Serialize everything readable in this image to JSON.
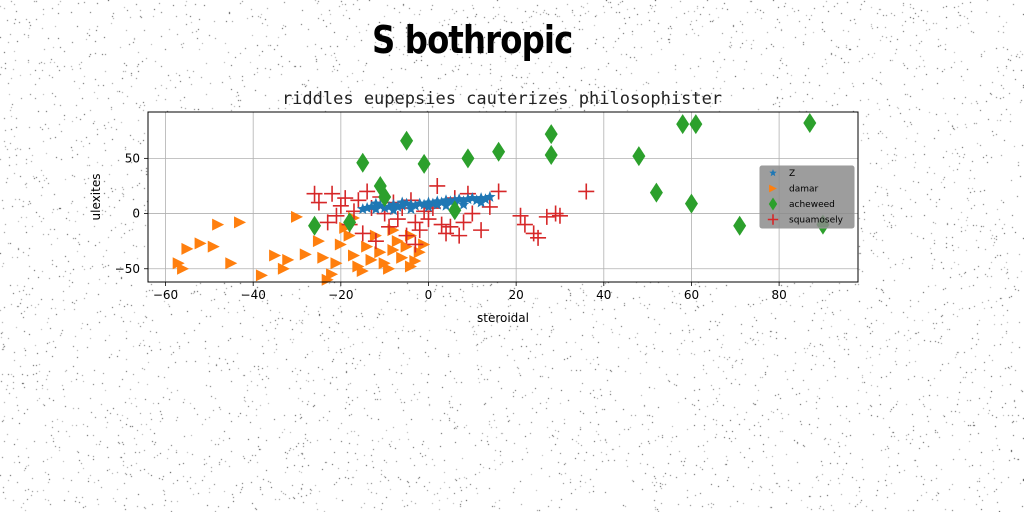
{
  "figure": {
    "suptitle": "S bothropic"
  },
  "chart_data": {
    "type": "scatter",
    "title": "riddles eupepsies cauterizes philosophister",
    "xlabel": "steroidal",
    "ylabel": "ulexites",
    "xlim": [
      -64,
      98
    ],
    "ylim": [
      -62,
      92
    ],
    "xticks": [
      -60,
      -40,
      -20,
      0,
      20,
      40,
      60,
      80
    ],
    "yticks": [
      -50,
      0,
      50
    ],
    "grid": true,
    "legend_placement": "right",
    "series": [
      {
        "name": "Z",
        "marker": "star",
        "color": "#1f77b4",
        "points": [
          [
            -15,
            4
          ],
          [
            -14,
            5
          ],
          [
            -13,
            6
          ],
          [
            -12,
            4
          ],
          [
            -11,
            7
          ],
          [
            -10,
            5
          ],
          [
            -9,
            6
          ],
          [
            -8,
            8
          ],
          [
            -7,
            6
          ],
          [
            -6,
            7
          ],
          [
            -5,
            9
          ],
          [
            -4,
            8
          ],
          [
            -3,
            7
          ],
          [
            -2,
            9
          ],
          [
            -1,
            8
          ],
          [
            0,
            10
          ],
          [
            1,
            9
          ],
          [
            2,
            11
          ],
          [
            3,
            10
          ],
          [
            4,
            12
          ],
          [
            5,
            11
          ],
          [
            6,
            12
          ],
          [
            7,
            13
          ],
          [
            8,
            11
          ],
          [
            9,
            13
          ],
          [
            10,
            14
          ],
          [
            11,
            12
          ],
          [
            12,
            14
          ],
          [
            13,
            13
          ],
          [
            14,
            15
          ],
          [
            -12,
            9
          ],
          [
            -8,
            3
          ],
          [
            -4,
            4
          ],
          [
            0,
            6
          ],
          [
            4,
            7
          ],
          [
            8,
            8
          ],
          [
            12,
            10
          ],
          [
            -6,
            10
          ],
          [
            2,
            8
          ],
          [
            6,
            9
          ]
        ]
      },
      {
        "name": "damar",
        "marker": "triangle-right",
        "color": "#ff7f0e",
        "points": [
          [
            -57,
            -45
          ],
          [
            -56,
            -50
          ],
          [
            -55,
            -32
          ],
          [
            -52,
            -27
          ],
          [
            -49,
            -30
          ],
          [
            -48,
            -10
          ],
          [
            -45,
            -45
          ],
          [
            -43,
            -8
          ],
          [
            -38,
            -56
          ],
          [
            -35,
            -38
          ],
          [
            -33,
            -50
          ],
          [
            -32,
            -42
          ],
          [
            -30,
            -3
          ],
          [
            -28,
            -37
          ],
          [
            -25,
            -25
          ],
          [
            -24,
            -40
          ],
          [
            -22,
            -55
          ],
          [
            -21,
            -45
          ],
          [
            -20,
            -28
          ],
          [
            -19,
            -13
          ],
          [
            -18,
            -20
          ],
          [
            -17,
            -38
          ],
          [
            -16,
            -48
          ],
          [
            -15,
            -52
          ],
          [
            -14,
            -30
          ],
          [
            -13,
            -42
          ],
          [
            -12,
            -20
          ],
          [
            -11,
            -35
          ],
          [
            -10,
            -45
          ],
          [
            -9,
            -50
          ],
          [
            -8,
            -15
          ],
          [
            -7,
            -25
          ],
          [
            -6,
            -40
          ],
          [
            -5,
            -30
          ],
          [
            -4,
            -20
          ],
          [
            -3,
            -43
          ],
          [
            -2,
            -35
          ],
          [
            -1,
            -28
          ],
          [
            -17,
            -4
          ],
          [
            -23,
            -60
          ],
          [
            -8,
            -33
          ],
          [
            -4,
            -48
          ]
        ]
      },
      {
        "name": "acheweed",
        "marker": "diamond",
        "color": "#2ca02c",
        "points": [
          [
            -26,
            -11
          ],
          [
            -18,
            -8
          ],
          [
            -15,
            46
          ],
          [
            -11,
            25
          ],
          [
            -10,
            15
          ],
          [
            -5,
            66
          ],
          [
            -1,
            45
          ],
          [
            6,
            3
          ],
          [
            9,
            50
          ],
          [
            16,
            56
          ],
          [
            28,
            72
          ],
          [
            28,
            53
          ],
          [
            48,
            52
          ],
          [
            52,
            19
          ],
          [
            58,
            81
          ],
          [
            60,
            9
          ],
          [
            61,
            81
          ],
          [
            71,
            -11
          ],
          [
            87,
            82
          ],
          [
            90,
            -10
          ]
        ]
      },
      {
        "name": "squamosely",
        "marker": "plus",
        "color": "#d62728",
        "points": [
          [
            -26,
            18
          ],
          [
            -25,
            10
          ],
          [
            -22,
            18
          ],
          [
            -21,
            -2
          ],
          [
            -20,
            7
          ],
          [
            -19,
            14
          ],
          [
            -18,
            -10
          ],
          [
            -17,
            2
          ],
          [
            -16,
            12
          ],
          [
            -15,
            -18
          ],
          [
            -14,
            20
          ],
          [
            -13,
            5
          ],
          [
            -12,
            -25
          ],
          [
            -11,
            15
          ],
          [
            -10,
            0
          ],
          [
            -9,
            -12
          ],
          [
            -8,
            10
          ],
          [
            -7,
            -5
          ],
          [
            -6,
            5
          ],
          [
            -5,
            -20
          ],
          [
            -4,
            12
          ],
          [
            -3,
            -8
          ],
          [
            -2,
            -15
          ],
          [
            -1,
            2
          ],
          [
            0,
            -5
          ],
          [
            1,
            5
          ],
          [
            2,
            25
          ],
          [
            3,
            -10
          ],
          [
            4,
            -18
          ],
          [
            5,
            -12
          ],
          [
            6,
            14
          ],
          [
            7,
            -20
          ],
          [
            8,
            -8
          ],
          [
            9,
            18
          ],
          [
            10,
            0
          ],
          [
            12,
            -15
          ],
          [
            14,
            6
          ],
          [
            16,
            20
          ],
          [
            21,
            -2
          ],
          [
            22,
            -10
          ],
          [
            24,
            -18
          ],
          [
            25,
            -22
          ],
          [
            27,
            -3
          ],
          [
            29,
            0
          ],
          [
            30,
            -2
          ],
          [
            36,
            20
          ],
          [
            -23,
            -8
          ],
          [
            -3,
            -28
          ]
        ]
      }
    ]
  }
}
